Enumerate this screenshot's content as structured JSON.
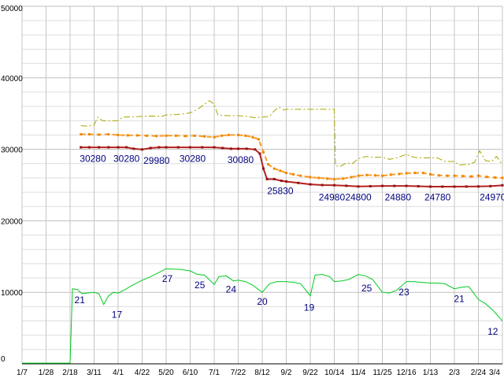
{
  "chart_data": {
    "type": "line",
    "title": "",
    "xlabel": "",
    "ylabel": "",
    "ylim": [
      0,
      50000
    ],
    "y_ticks": [
      0,
      10000,
      20000,
      30000,
      40000,
      50000
    ],
    "y_minor_step": 2000,
    "grid": true,
    "legend": "none",
    "x_tick_labels": [
      "1/7",
      "1/28",
      "2/18",
      "3/11",
      "4/1",
      "4/22",
      "5/20",
      "6/10",
      "7/1",
      "7/22",
      "8/12",
      "9/2",
      "9/22",
      "10/14",
      "11/4",
      "11/25",
      "12/16",
      "1/13",
      "2/3",
      "2/24",
      "3/4"
    ],
    "colors": {
      "grid_minor": "#dddddd",
      "grid_major": "#bfbfbf",
      "grid_vertical": "#c6c6c6",
      "axis": "#000000",
      "axis_text": "#000000",
      "point_label": "#000080"
    },
    "series": [
      {
        "name": "upper-dashdot-line",
        "color": "#a8a800",
        "style": "dashdot",
        "width": 1,
        "points": [
          [
            2.45,
            33300
          ],
          [
            2.7,
            33250
          ],
          [
            3.0,
            33400
          ],
          [
            3.15,
            34500
          ],
          [
            3.35,
            34000
          ],
          [
            3.6,
            33950
          ],
          [
            4.0,
            34000
          ],
          [
            4.2,
            34500
          ],
          [
            4.6,
            34550
          ],
          [
            5.0,
            34600
          ],
          [
            5.4,
            34650
          ],
          [
            5.8,
            34600
          ],
          [
            6.0,
            34800
          ],
          [
            6.4,
            34850
          ],
          [
            6.8,
            35000
          ],
          [
            7.0,
            35100
          ],
          [
            7.3,
            35600
          ],
          [
            7.6,
            36300
          ],
          [
            7.8,
            36800
          ],
          [
            8.0,
            36300
          ],
          [
            8.15,
            34800
          ],
          [
            8.5,
            34700
          ],
          [
            9.0,
            34700
          ],
          [
            9.4,
            34600
          ],
          [
            9.7,
            34400
          ],
          [
            10.0,
            34500
          ],
          [
            10.3,
            34600
          ],
          [
            10.5,
            35400
          ],
          [
            10.7,
            35900
          ],
          [
            10.9,
            35500
          ],
          [
            11.0,
            35600
          ],
          [
            11.5,
            35600
          ],
          [
            12.0,
            35600
          ],
          [
            12.5,
            35600
          ],
          [
            13.0,
            35600
          ],
          [
            13.05,
            27700
          ],
          [
            13.25,
            27600
          ],
          [
            13.5,
            28100
          ],
          [
            13.75,
            28000
          ],
          [
            14.0,
            28700
          ],
          [
            14.3,
            29000
          ],
          [
            14.6,
            28900
          ],
          [
            15.0,
            28900
          ],
          [
            15.3,
            28600
          ],
          [
            15.6,
            28800
          ],
          [
            16.0,
            29300
          ],
          [
            16.3,
            28900
          ],
          [
            16.6,
            28800
          ],
          [
            17.0,
            28800
          ],
          [
            17.3,
            28800
          ],
          [
            17.6,
            28300
          ],
          [
            18.0,
            28300
          ],
          [
            18.2,
            27800
          ],
          [
            18.6,
            27900
          ],
          [
            18.85,
            28200
          ],
          [
            19.05,
            29800
          ],
          [
            19.3,
            28400
          ],
          [
            19.55,
            28300
          ],
          [
            19.75,
            29000
          ],
          [
            20.0,
            27900
          ]
        ]
      },
      {
        "name": "middle-dashed-line",
        "color": "#ff9922",
        "marker": "square",
        "marker_color": "#ee8800",
        "style": "dashed",
        "width": 2,
        "points": [
          [
            2.45,
            32100
          ],
          [
            2.8,
            32100
          ],
          [
            3.2,
            32050
          ],
          [
            3.6,
            32100
          ],
          [
            4.0,
            32000
          ],
          [
            4.4,
            31950
          ],
          [
            4.8,
            31950
          ],
          [
            5.2,
            31900
          ],
          [
            5.6,
            31850
          ],
          [
            6.0,
            31900
          ],
          [
            6.4,
            31900
          ],
          [
            6.8,
            31850
          ],
          [
            7.2,
            31900
          ],
          [
            7.6,
            31800
          ],
          [
            8.0,
            31700
          ],
          [
            8.3,
            31900
          ],
          [
            8.6,
            32000
          ],
          [
            9.0,
            32000
          ],
          [
            9.3,
            31900
          ],
          [
            9.6,
            31700
          ],
          [
            9.85,
            31400
          ],
          [
            10.05,
            29600
          ],
          [
            10.25,
            27900
          ],
          [
            10.5,
            27300
          ],
          [
            10.75,
            27000
          ],
          [
            11.0,
            26700
          ],
          [
            11.3,
            26500
          ],
          [
            11.6,
            26300
          ],
          [
            12.0,
            26100
          ],
          [
            12.35,
            26000
          ],
          [
            12.7,
            25900
          ],
          [
            13.0,
            25800
          ],
          [
            13.35,
            25900
          ],
          [
            13.7,
            26100
          ],
          [
            14.0,
            26300
          ],
          [
            14.35,
            26400
          ],
          [
            14.7,
            26350
          ],
          [
            15.0,
            26300
          ],
          [
            15.35,
            26450
          ],
          [
            15.7,
            26550
          ],
          [
            16.0,
            26650
          ],
          [
            16.35,
            26700
          ],
          [
            16.7,
            26700
          ],
          [
            17.0,
            26500
          ],
          [
            17.35,
            26350
          ],
          [
            17.7,
            26300
          ],
          [
            18.0,
            26300
          ],
          [
            18.35,
            26250
          ],
          [
            18.7,
            26200
          ],
          [
            19.0,
            26300
          ],
          [
            19.35,
            26150
          ],
          [
            19.7,
            26050
          ],
          [
            20.0,
            26000
          ]
        ]
      },
      {
        "name": "price-solid-line",
        "color": "#b22222",
        "marker": "square",
        "marker_color": "#991111",
        "style": "solid",
        "width": 2,
        "points": [
          [
            2.45,
            30280
          ],
          [
            2.8,
            30280
          ],
          [
            3.2,
            30280
          ],
          [
            3.6,
            30280
          ],
          [
            4.0,
            30280
          ],
          [
            4.35,
            30280
          ],
          [
            4.65,
            30080
          ],
          [
            5.0,
            29980
          ],
          [
            5.35,
            30180
          ],
          [
            5.7,
            30280
          ],
          [
            6.0,
            30280
          ],
          [
            6.5,
            30280
          ],
          [
            7.0,
            30280
          ],
          [
            7.5,
            30280
          ],
          [
            8.0,
            30280
          ],
          [
            8.35,
            30180
          ],
          [
            8.7,
            30080
          ],
          [
            9.0,
            30080
          ],
          [
            9.35,
            30080
          ],
          [
            9.7,
            29980
          ],
          [
            9.9,
            29400
          ],
          [
            10.05,
            27300
          ],
          [
            10.2,
            25830
          ],
          [
            10.5,
            25830
          ],
          [
            10.8,
            25600
          ],
          [
            11.0,
            25500
          ],
          [
            11.5,
            25300
          ],
          [
            12.0,
            25100
          ],
          [
            12.5,
            25000
          ],
          [
            13.0,
            24980
          ],
          [
            13.5,
            24900
          ],
          [
            14.0,
            24800
          ],
          [
            14.5,
            24840
          ],
          [
            15.0,
            24880
          ],
          [
            15.5,
            24880
          ],
          [
            16.0,
            24880
          ],
          [
            16.5,
            24830
          ],
          [
            17.0,
            24780
          ],
          [
            17.5,
            24780
          ],
          [
            18.0,
            24780
          ],
          [
            18.5,
            24790
          ],
          [
            19.0,
            24800
          ],
          [
            19.5,
            24850
          ],
          [
            20.0,
            24970
          ]
        ]
      },
      {
        "name": "count-green-line",
        "color": "#00cc22",
        "style": "solid",
        "width": 1,
        "points": [
          [
            0,
            100
          ],
          [
            0.5,
            100
          ],
          [
            1.0,
            100
          ],
          [
            1.5,
            100
          ],
          [
            2.0,
            100
          ],
          [
            2.1,
            10500
          ],
          [
            2.3,
            10400
          ],
          [
            2.5,
            9800
          ],
          [
            2.7,
            9900
          ],
          [
            3.0,
            10000
          ],
          [
            3.2,
            9800
          ],
          [
            3.4,
            8300
          ],
          [
            3.6,
            9500
          ],
          [
            3.8,
            10000
          ],
          [
            4.0,
            9900
          ],
          [
            4.3,
            10400
          ],
          [
            4.6,
            11000
          ],
          [
            5.0,
            11700
          ],
          [
            5.3,
            12100
          ],
          [
            5.6,
            12600
          ],
          [
            6.0,
            13300
          ],
          [
            6.3,
            13250
          ],
          [
            6.6,
            13200
          ],
          [
            7.0,
            13000
          ],
          [
            7.3,
            12500
          ],
          [
            7.6,
            12400
          ],
          [
            8.0,
            11100
          ],
          [
            8.2,
            12200
          ],
          [
            8.5,
            12300
          ],
          [
            8.8,
            11600
          ],
          [
            9.0,
            11700
          ],
          [
            9.3,
            11500
          ],
          [
            9.6,
            11000
          ],
          [
            10.0,
            10000
          ],
          [
            10.3,
            11200
          ],
          [
            10.6,
            11500
          ],
          [
            11.0,
            11500
          ],
          [
            11.3,
            11400
          ],
          [
            11.6,
            11200
          ],
          [
            12.0,
            9500
          ],
          [
            12.2,
            12400
          ],
          [
            12.5,
            12500
          ],
          [
            12.8,
            12200
          ],
          [
            13.0,
            11500
          ],
          [
            13.3,
            11600
          ],
          [
            13.6,
            11800
          ],
          [
            14.0,
            12500
          ],
          [
            14.3,
            12300
          ],
          [
            14.6,
            11800
          ],
          [
            15.0,
            10000
          ],
          [
            15.3,
            9900
          ],
          [
            15.6,
            10300
          ],
          [
            16.0,
            11500
          ],
          [
            16.3,
            11500
          ],
          [
            16.6,
            11400
          ],
          [
            17.0,
            11300
          ],
          [
            17.3,
            11300
          ],
          [
            17.6,
            11200
          ],
          [
            18.0,
            10500
          ],
          [
            18.3,
            10700
          ],
          [
            18.6,
            10800
          ],
          [
            19.0,
            9000
          ],
          [
            19.3,
            8400
          ],
          [
            19.6,
            7500
          ],
          [
            20.0,
            6000
          ]
        ]
      }
    ],
    "point_labels": [
      {
        "series": "price-solid-line",
        "text": "30280",
        "i": 2.95,
        "v": 28700
      },
      {
        "series": "price-solid-line",
        "text": "30280",
        "i": 4.35,
        "v": 28700
      },
      {
        "series": "price-solid-line",
        "text": "29980",
        "i": 5.6,
        "v": 28400
      },
      {
        "series": "price-solid-line",
        "text": "30280",
        "i": 7.1,
        "v": 28700
      },
      {
        "series": "price-solid-line",
        "text": "30080",
        "i": 9.1,
        "v": 28500
      },
      {
        "series": "price-solid-line",
        "text": "25830",
        "i": 10.75,
        "v": 24200
      },
      {
        "series": "price-solid-line",
        "text": "24980",
        "i": 12.9,
        "v": 23300
      },
      {
        "series": "price-solid-line",
        "text": "24800",
        "i": 14.0,
        "v": 23300
      },
      {
        "series": "price-solid-line",
        "text": "24880",
        "i": 15.65,
        "v": 23300
      },
      {
        "series": "price-solid-line",
        "text": "24780",
        "i": 17.3,
        "v": 23300
      },
      {
        "series": "price-solid-line",
        "text": "24970",
        "i": 19.6,
        "v": 23300
      },
      {
        "series": "count-green-line",
        "text": "21",
        "i": 2.4,
        "v": 8900
      },
      {
        "series": "count-green-line",
        "text": "17",
        "i": 3.95,
        "v": 6900
      },
      {
        "series": "count-green-line",
        "text": "27",
        "i": 6.05,
        "v": 11900
      },
      {
        "series": "count-green-line",
        "text": "25",
        "i": 7.4,
        "v": 11000
      },
      {
        "series": "count-green-line",
        "text": "24",
        "i": 8.7,
        "v": 10400
      },
      {
        "series": "count-green-line",
        "text": "20",
        "i": 10.0,
        "v": 8700
      },
      {
        "series": "count-green-line",
        "text": "19",
        "i": 11.95,
        "v": 7900
      },
      {
        "series": "count-green-line",
        "text": "25",
        "i": 14.35,
        "v": 10600
      },
      {
        "series": "count-green-line",
        "text": "23",
        "i": 15.9,
        "v": 10000
      },
      {
        "series": "count-green-line",
        "text": "21",
        "i": 18.2,
        "v": 9100
      },
      {
        "series": "count-green-line",
        "text": "12",
        "i": 19.6,
        "v": 4500
      }
    ]
  }
}
